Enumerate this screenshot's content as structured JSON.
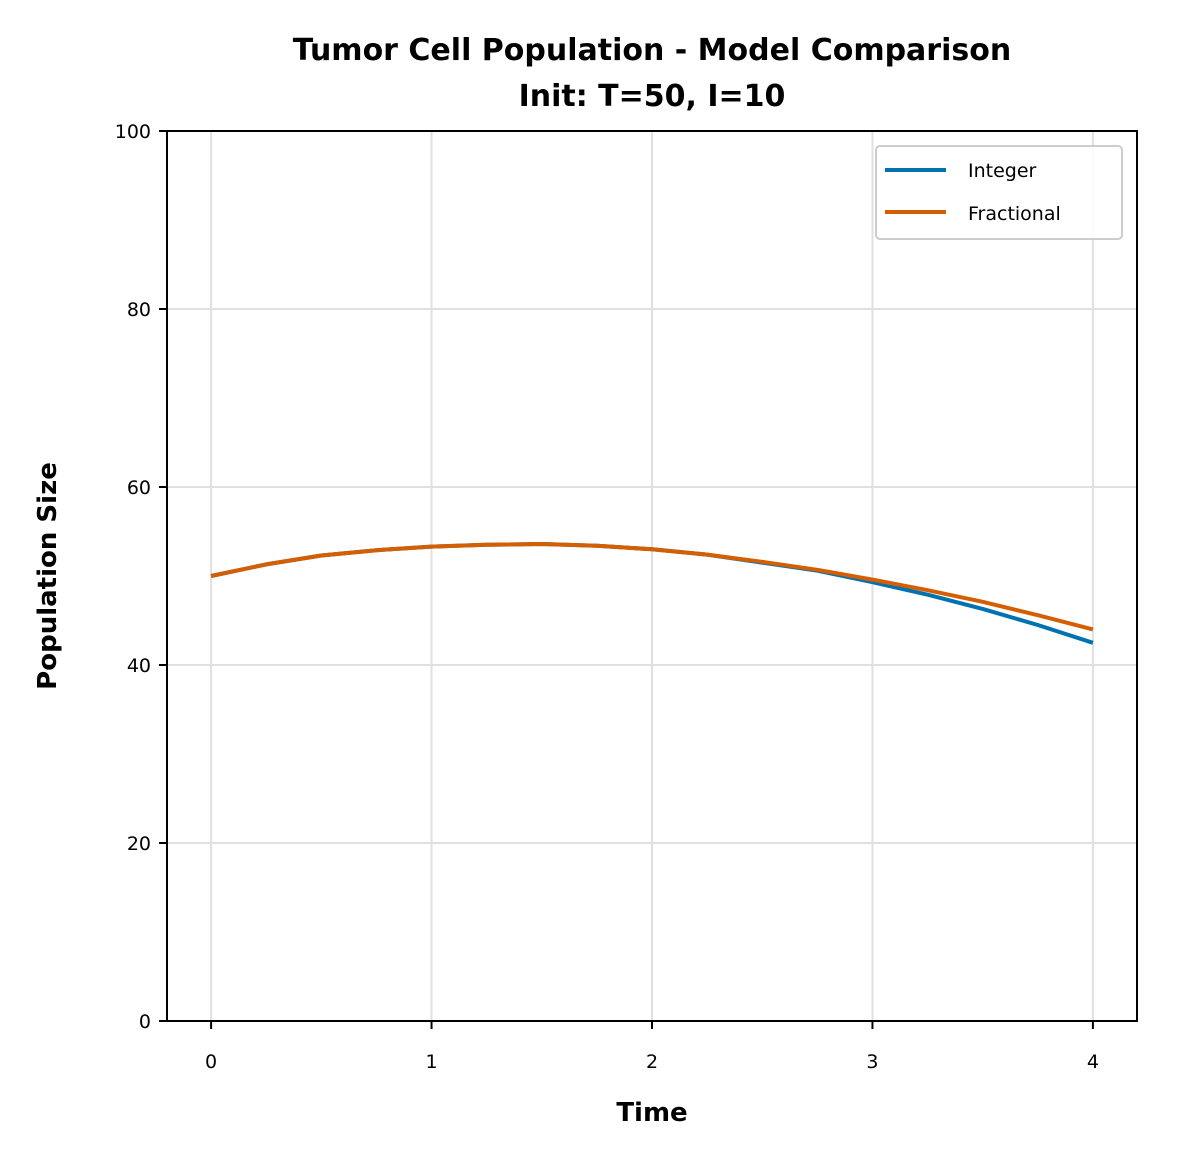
{
  "chart_data": {
    "type": "line",
    "title": "Tumor Cell Population - Model Comparison",
    "subtitle": "Init: T=50, I=10",
    "xlabel": "Time",
    "ylabel": "Population Size",
    "xlim": [
      -0.2,
      4.2
    ],
    "ylim": [
      0,
      100
    ],
    "xticks": [
      "0",
      "1",
      "2",
      "3",
      "4"
    ],
    "yticks": [
      "0",
      "20",
      "40",
      "60",
      "80",
      "100"
    ],
    "grid": true,
    "legend_position": "top-right",
    "series": [
      {
        "name": "Integer",
        "color": "#0072b2",
        "x": [
          0,
          0.25,
          0.5,
          0.75,
          1.0,
          1.25,
          1.5,
          1.75,
          2.0,
          2.25,
          2.5,
          2.75,
          3.0,
          3.25,
          3.5,
          3.75,
          4.0
        ],
        "y": [
          50.0,
          51.3,
          52.3,
          52.9,
          53.3,
          53.5,
          53.6,
          53.4,
          53.0,
          52.4,
          51.5,
          50.6,
          49.3,
          47.9,
          46.3,
          44.5,
          42.5
        ]
      },
      {
        "name": "Fractional",
        "color": "#d55e00",
        "x": [
          0,
          0.25,
          0.5,
          0.75,
          1.0,
          1.25,
          1.5,
          1.75,
          2.0,
          2.25,
          2.5,
          2.75,
          3.0,
          3.25,
          3.5,
          3.75,
          4.0
        ],
        "y": [
          50.0,
          51.3,
          52.3,
          52.9,
          53.3,
          53.5,
          53.6,
          53.4,
          53.0,
          52.4,
          51.6,
          50.7,
          49.6,
          48.4,
          47.1,
          45.6,
          44.0
        ]
      }
    ]
  }
}
